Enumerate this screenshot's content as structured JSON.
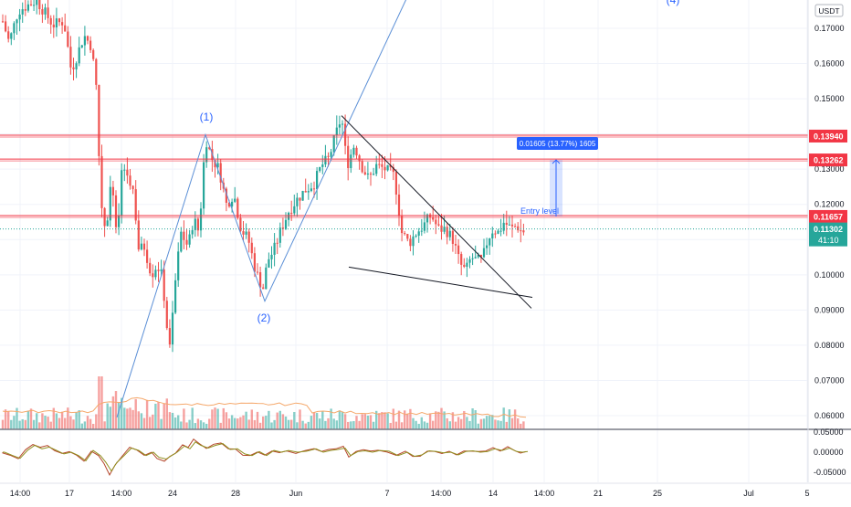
{
  "quote_currency": "USDT",
  "chart_data": {
    "type": "candlestick",
    "symbol_quote": "USDT",
    "y_axis": {
      "ticks": [
        "0.17000",
        "0.16000",
        "0.15000",
        "0.14000",
        "0.13000",
        "0.12000",
        "0.11000",
        "0.10000",
        "0.09000",
        "0.08000",
        "0.07000",
        "0.06000"
      ],
      "range": [
        0.055,
        0.178
      ]
    },
    "x_axis": {
      "ticks": [
        "14:00",
        "17",
        "14:00",
        "24",
        "28",
        "Jun",
        "7",
        "14:00",
        "14",
        "14:00",
        "21",
        "25",
        "Jul",
        "5"
      ]
    },
    "price_levels": [
      {
        "label": "0.13940",
        "value": 0.1394,
        "color": "#f23645"
      },
      {
        "label": "0.13262",
        "value": 0.13262,
        "color": "#f23645"
      },
      {
        "label": "0.11657",
        "value": 0.11657,
        "color": "#f23645"
      }
    ],
    "current_price": {
      "label": "0.11302",
      "countdown": "41:10",
      "value": 0.11302,
      "color": "#26a69a"
    },
    "measure": {
      "label": "0.01605 (13.77%) 1605",
      "from": 0.11657,
      "to": 0.13262
    },
    "annotations": {
      "entry": "Entry level",
      "wave_labels": [
        "(1)",
        "(2)",
        "(4)"
      ]
    },
    "up_color": "#26a69a",
    "down_color": "#ef5350",
    "indicator": {
      "ticks": [
        "0.05000",
        "0.00000",
        "-0.05000"
      ],
      "range": [
        -0.065,
        0.06
      ]
    }
  }
}
